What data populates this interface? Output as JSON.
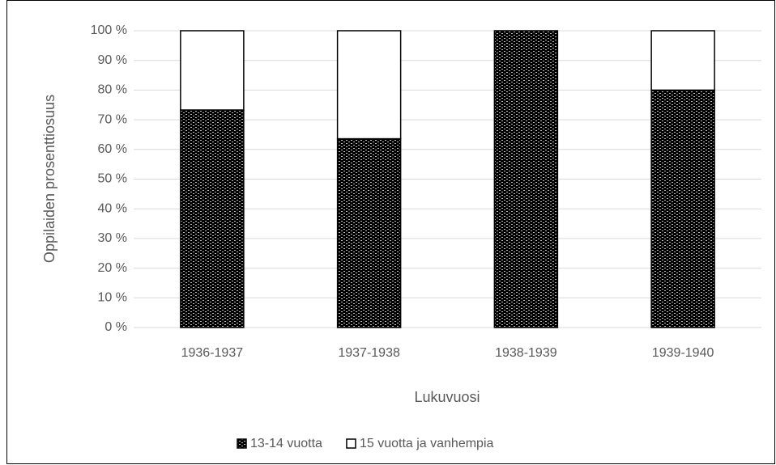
{
  "chart_data": {
    "type": "stacked_bar",
    "x_label": "Lukuvuosi",
    "y_label": "Oppilaiden prosenttiosuus",
    "categories": [
      "1936-1937",
      "1937-1938",
      "1938-1939",
      "1939-1940"
    ],
    "series": [
      {
        "name": "13-14 vuotta",
        "color": "#000000",
        "values": [
          73.3,
          63.6,
          100,
          80
        ]
      },
      {
        "name": "15 vuotta ja vanhempia",
        "color": "#ffffff",
        "values": [
          26.7,
          36.4,
          0,
          20
        ]
      }
    ],
    "ylim": [
      0,
      100
    ],
    "yticks": [
      {
        "value": 0,
        "label": "0 %"
      },
      {
        "value": 10,
        "label": "10 %"
      },
      {
        "value": 20,
        "label": "20 %"
      },
      {
        "value": 30,
        "label": "30 %"
      },
      {
        "value": 40,
        "label": "40 %"
      },
      {
        "value": 50,
        "label": "50 %"
      },
      {
        "value": 60,
        "label": "60 %"
      },
      {
        "value": 70,
        "label": "70 %"
      },
      {
        "value": 80,
        "label": "80 %"
      },
      {
        "value": 90,
        "label": "90 %"
      },
      {
        "value": 100,
        "label": "100 %"
      }
    ],
    "grid": true,
    "legend": "bottom"
  }
}
